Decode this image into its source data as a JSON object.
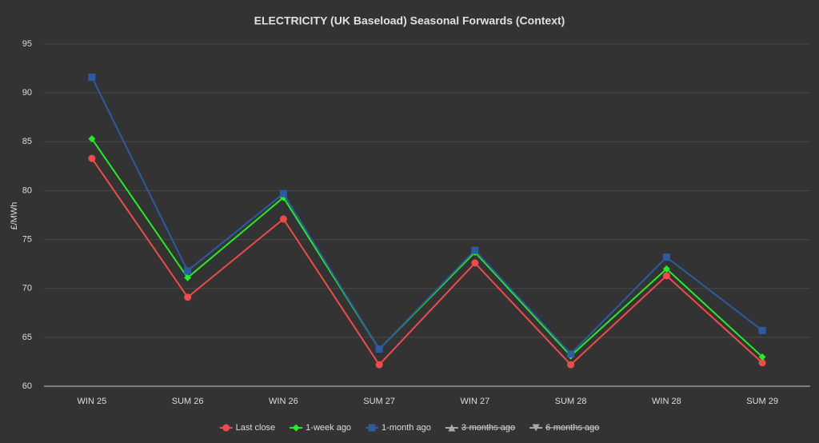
{
  "chart_data": {
    "type": "line",
    "title": "ELECTRICITY (UK Baseload) Seasonal Forwards (Context)",
    "y_label": "£/MWh",
    "categories": [
      "WIN 25",
      "SUM 26",
      "WIN 26",
      "SUM 27",
      "WIN 27",
      "SUM 28",
      "WIN 28",
      "SUM 29"
    ],
    "series": [
      {
        "name": "Last close",
        "color": "#f04a4a",
        "marker": "circle",
        "hidden": false,
        "values": [
          83.3,
          69.1,
          77.1,
          62.2,
          72.6,
          62.2,
          71.3,
          62.4
        ]
      },
      {
        "name": "1-week ago",
        "color": "#22ee22",
        "marker": "diamond",
        "hidden": false,
        "values": [
          85.3,
          71.1,
          79.3,
          63.8,
          73.7,
          63.1,
          72.0,
          63.0
        ]
      },
      {
        "name": "1-month ago",
        "color": "#2d5aa0",
        "marker": "square",
        "hidden": false,
        "values": [
          91.6,
          71.8,
          79.7,
          63.8,
          73.9,
          63.3,
          73.2,
          65.7
        ]
      },
      {
        "name": "3-months ago",
        "color": "#aaaaaa",
        "marker": "triangle",
        "hidden": true,
        "values": [
          null,
          null,
          null,
          null,
          null,
          null,
          null,
          null
        ]
      },
      {
        "name": "6-months ago",
        "color": "#aaaaaa",
        "marker": "triangle-down",
        "hidden": true,
        "values": [
          null,
          null,
          null,
          null,
          null,
          null,
          null,
          null
        ]
      }
    ],
    "ylim": [
      60,
      95
    ],
    "yticks": [
      60,
      65,
      70,
      75,
      80,
      85,
      90,
      95
    ],
    "grid": true,
    "legend": "bottom"
  }
}
